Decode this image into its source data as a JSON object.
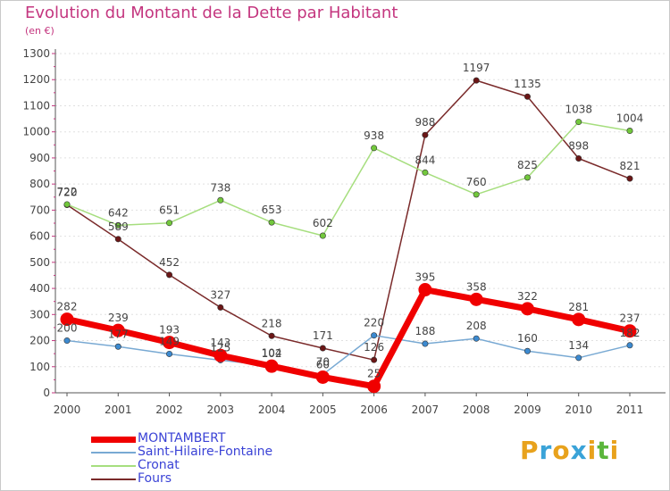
{
  "title": "Evolution du Montant de la Dette par Habitant",
  "unit_label": "(en €)",
  "logo": {
    "letters": [
      "P",
      "r",
      "o",
      "x",
      "i",
      "t",
      "i"
    ],
    "colors": [
      "#e8a21c",
      "#3aa3d8",
      "#e8a21c",
      "#3aa3d8",
      "#e8a21c",
      "#5bb63c",
      "#e8a21c"
    ]
  },
  "chart_data": {
    "type": "line",
    "title": "Evolution du Montant de la Dette par Habitant",
    "ylabel": "(en €)",
    "xlabel": "",
    "ylim": [
      0,
      1300
    ],
    "yticks": [
      0,
      100,
      200,
      300,
      400,
      500,
      600,
      700,
      800,
      900,
      1000,
      1100,
      1200,
      1300
    ],
    "x": [
      "2000",
      "2001",
      "2002",
      "2003",
      "2004",
      "2005",
      "2006",
      "2007",
      "2008",
      "2009",
      "2010",
      "2011"
    ],
    "grid": true,
    "legend_position": "bottom-left",
    "series": [
      {
        "name": "MONTAMBERT",
        "color": "#f00000",
        "marker_color": "#f00000",
        "width": 7,
        "values": [
          282,
          239,
          193,
          143,
          102,
          60,
          25,
          395,
          358,
          322,
          281,
          237
        ],
        "labels": [
          "282",
          "239",
          "193",
          "143",
          "102",
          "60",
          "25",
          "395",
          "358",
          "322",
          "281",
          "237"
        ]
      },
      {
        "name": "Saint-Hilaire-Fontaine",
        "color": "#78a9d3",
        "marker_color": "#3c8ad0",
        "width": 1.5,
        "values": [
          200,
          177,
          149,
          125,
          104,
          70,
          220,
          188,
          208,
          160,
          134,
          182
        ],
        "labels": [
          "200",
          "177",
          "149",
          "125",
          "104",
          "70",
          "220",
          "188",
          "208",
          "160",
          "134",
          "182"
        ]
      },
      {
        "name": "Cronat",
        "color": "#a6de7e",
        "marker_color": "#72c83c",
        "width": 1.5,
        "values": [
          722,
          642,
          651,
          738,
          653,
          602,
          938,
          844,
          760,
          825,
          1038,
          1004
        ],
        "labels": [
          "722",
          "642",
          "651",
          "738",
          "653",
          "602",
          "938",
          "844",
          "760",
          "825",
          "1038",
          "1004"
        ]
      },
      {
        "name": "Fours",
        "color": "#7a2a2a",
        "marker_color": "#6b1616",
        "width": 1.5,
        "values": [
          720,
          589,
          452,
          327,
          218,
          171,
          126,
          988,
          1197,
          1135,
          898,
          821
        ],
        "labels": [
          "720",
          "589",
          "452",
          "327",
          "218",
          "171",
          "126",
          "988",
          "1197",
          "1135",
          "898",
          "821"
        ]
      }
    ]
  }
}
